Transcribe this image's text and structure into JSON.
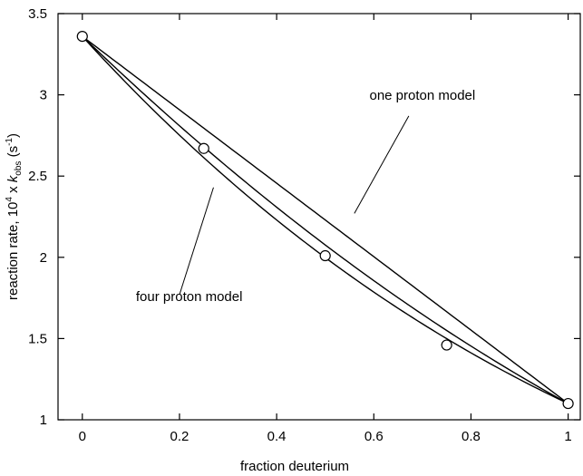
{
  "chart_data": {
    "type": "scatter",
    "xlabel": "fraction deuterium",
    "ylabel": {
      "prefix": "reaction rate, 10",
      "sup": "4",
      "mid": " x ",
      "var": "k",
      "sub": "obs",
      "unit_open": " (s",
      "unit_sup": "-1",
      "unit_close": ")"
    },
    "xlim": [
      -0.05,
      1.025
    ],
    "ylim": [
      1,
      3.5
    ],
    "xticks": [
      0,
      0.2,
      0.4,
      0.6,
      0.8,
      1
    ],
    "xtick_labels": [
      "0",
      "0.2",
      "0.4",
      "0.6",
      "0.8",
      "1"
    ],
    "yticks": [
      1,
      1.5,
      2,
      2.5,
      3,
      3.5
    ],
    "ytick_labels": [
      "1",
      "1.5",
      "2",
      "2.5",
      "3",
      "3.5"
    ],
    "grid": false,
    "points": {
      "x": [
        0,
        0.25,
        0.5,
        0.75,
        1
      ],
      "y": [
        3.36,
        2.67,
        2.01,
        1.46,
        1.1
      ]
    },
    "models": {
      "k_h": 3.36,
      "k_d": 1.1,
      "proton_counts": [
        1,
        2,
        4
      ]
    },
    "annotations": [
      {
        "text": "one proton model",
        "anchor": [
          0.7,
          2.97
        ],
        "pointer_from": [
          0.672,
          2.87
        ],
        "pointer_to": [
          0.56,
          2.27
        ]
      },
      {
        "text": "four proton model",
        "anchor": [
          0.22,
          1.73
        ],
        "pointer_from": [
          0.2,
          1.77
        ],
        "pointer_to": [
          0.27,
          2.43
        ]
      }
    ]
  }
}
